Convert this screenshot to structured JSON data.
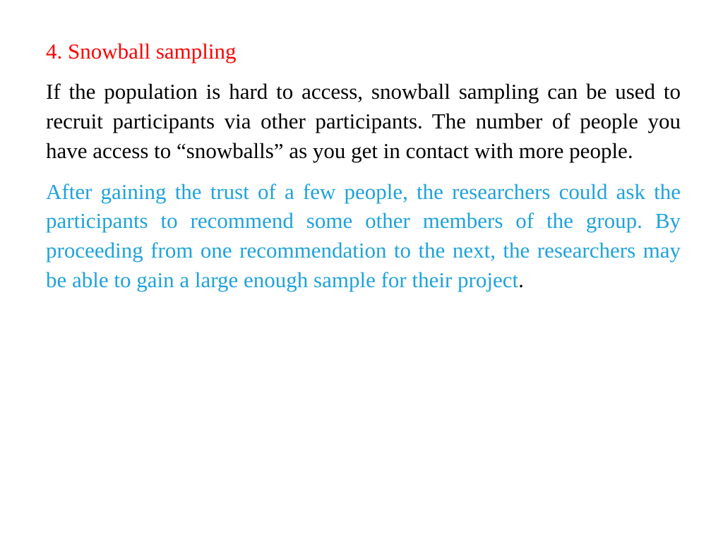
{
  "slide": {
    "heading": "4. Snowball sampling",
    "paragraph_black": "If the population is hard to access, snowball sampling can be used to recruit participants via other participants. The number of people you have access to “snowballs” as you get in contact with more people.",
    "paragraph_blue": "After gaining the trust of a few people, the researchers could ask the participants to recommend some other members of the group. By proceeding from one recommendation to the next, the researchers may be able to gain a large enough sample for their project",
    "trailing_period": ".",
    "colors": {
      "heading": "#ff0000",
      "body_black": "#000000",
      "body_blue": "#1fa2db",
      "background": "#ffffff"
    },
    "font_family": "Times New Roman",
    "font_size_pt": 24
  }
}
